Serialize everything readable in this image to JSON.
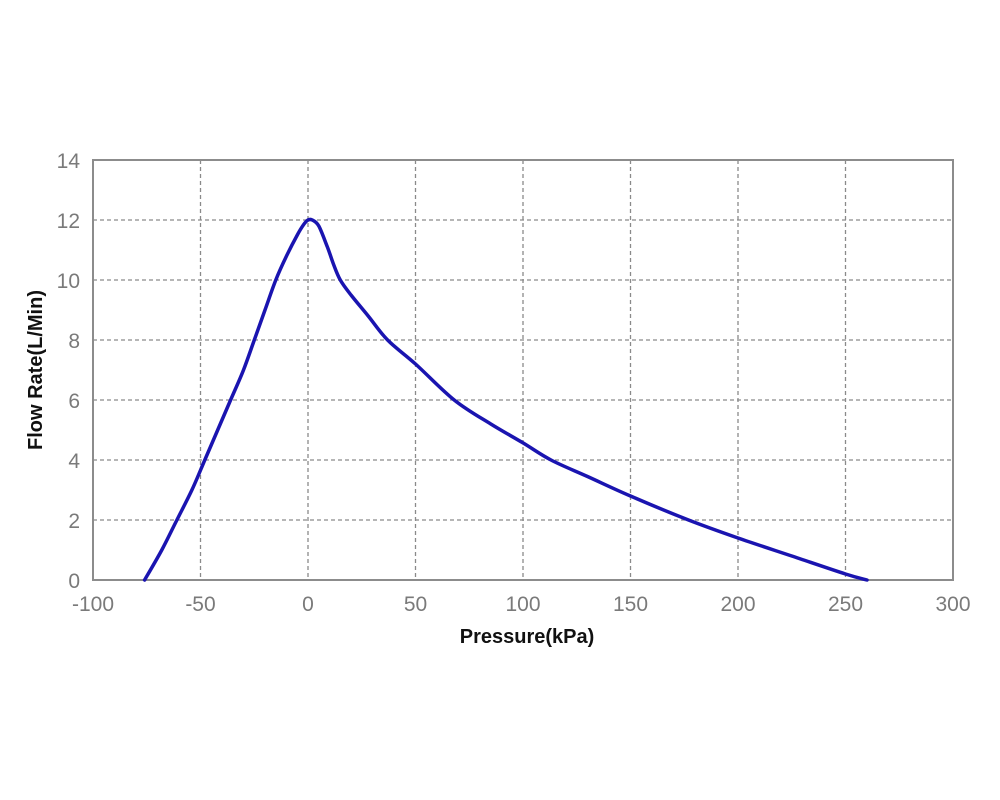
{
  "chart_data": {
    "type": "line",
    "title": "",
    "xlabel": "Pressure(kPa)",
    "ylabel": "Flow Rate(L/Min)",
    "xlim": [
      -100,
      300
    ],
    "ylim": [
      0,
      14
    ],
    "xticks": [
      -100,
      -50,
      0,
      50,
      100,
      150,
      200,
      250,
      300
    ],
    "yticks": [
      0,
      2,
      4,
      6,
      8,
      10,
      12,
      14
    ],
    "grid": true,
    "legend": null,
    "series": [
      {
        "name": "Flow Rate",
        "color": "#1a14b0",
        "x": [
          -76,
          -68,
          -61,
          -54,
          -48,
          -42,
          -36,
          -30,
          -25,
          -20,
          -15,
          -10,
          -5,
          -2,
          0,
          2,
          5,
          9,
          12,
          15,
          20,
          28,
          37,
          50,
          68,
          85,
          100,
          113,
          130,
          150,
          177,
          200,
          225,
          250,
          260
        ],
        "y": [
          0,
          1.0,
          2.0,
          3.0,
          4.0,
          5.0,
          6.0,
          7.0,
          8.0,
          9.0,
          10.0,
          10.8,
          11.5,
          11.85,
          12.0,
          12.0,
          11.8,
          11.1,
          10.5,
          10.0,
          9.5,
          8.8,
          8.0,
          7.2,
          6.0,
          5.2,
          4.57,
          4.0,
          3.45,
          2.8,
          2.0,
          1.4,
          0.8,
          0.2,
          0
        ]
      }
    ]
  }
}
